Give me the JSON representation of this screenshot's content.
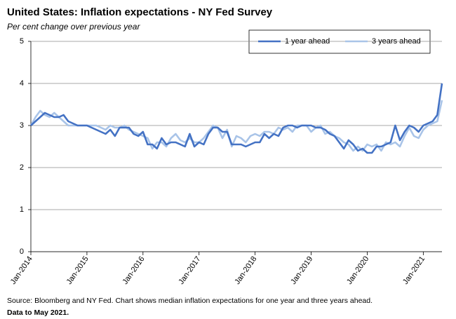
{
  "chart_data": {
    "type": "line",
    "title": "United States: Inflation expectations - NY Fed Survey",
    "subtitle": "Per cent change over previous year",
    "source": "Source: Bloomberg and NY Fed. Chart shows median inflation expectations for one year and three years ahead.",
    "note": "Data to  May 2021.",
    "categories": [
      "Jan-2014",
      null,
      null,
      null,
      null,
      null,
      null,
      null,
      null,
      null,
      null,
      null,
      "Jan-2015",
      null,
      null,
      null,
      null,
      null,
      null,
      null,
      null,
      null,
      null,
      null,
      "Jan-2016",
      null,
      null,
      null,
      null,
      null,
      null,
      null,
      null,
      null,
      null,
      null,
      "Jan-2017",
      null,
      null,
      null,
      null,
      null,
      null,
      null,
      null,
      null,
      null,
      null,
      "Jan-2018",
      null,
      null,
      null,
      null,
      null,
      null,
      null,
      null,
      null,
      null,
      null,
      "Jan-2019",
      null,
      null,
      null,
      null,
      null,
      null,
      null,
      null,
      null,
      null,
      null,
      "Jan-2020",
      null,
      null,
      null,
      null,
      null,
      null,
      null,
      null,
      null,
      null,
      null,
      "Jan-2021",
      null,
      null,
      null,
      null
    ],
    "series": [
      {
        "name": "1 year ahead",
        "color": "#4472c4",
        "values": [
          3.0,
          3.1,
          3.2,
          3.3,
          3.25,
          3.2,
          3.2,
          3.25,
          3.1,
          3.05,
          3.0,
          3.0,
          3.0,
          2.95,
          2.9,
          2.85,
          2.8,
          2.9,
          2.75,
          2.95,
          2.95,
          2.95,
          2.8,
          2.75,
          2.85,
          2.55,
          2.55,
          2.45,
          2.7,
          2.55,
          2.6,
          2.6,
          2.55,
          2.5,
          2.8,
          2.5,
          2.6,
          2.55,
          2.8,
          2.95,
          2.95,
          2.85,
          2.85,
          2.55,
          2.55,
          2.55,
          2.5,
          2.55,
          2.6,
          2.6,
          2.8,
          2.7,
          2.8,
          2.75,
          2.95,
          3.0,
          3.0,
          2.95,
          3.0,
          3.0,
          3.0,
          2.95,
          2.95,
          2.9,
          2.8,
          2.75,
          2.6,
          2.45,
          2.65,
          2.55,
          2.4,
          2.45,
          2.35,
          2.35,
          2.5,
          2.5,
          2.55,
          2.6,
          3.0,
          2.65,
          2.85,
          3.0,
          2.95,
          2.85,
          3.0,
          3.05,
          3.1,
          3.25,
          4.0
        ]
      },
      {
        "name": "3 years ahead",
        "color": "#a9c4e8",
        "values": [
          3.0,
          3.2,
          3.35,
          3.25,
          3.2,
          3.3,
          3.2,
          3.1,
          3.0,
          3.0,
          3.0,
          3.0,
          3.0,
          3.0,
          3.0,
          2.95,
          2.9,
          3.0,
          2.95,
          2.95,
          3.0,
          2.9,
          2.85,
          2.8,
          2.75,
          2.7,
          2.45,
          2.6,
          2.6,
          2.5,
          2.7,
          2.8,
          2.65,
          2.6,
          2.7,
          2.6,
          2.6,
          2.7,
          2.85,
          3.0,
          2.95,
          2.7,
          2.9,
          2.5,
          2.75,
          2.7,
          2.6,
          2.75,
          2.8,
          2.75,
          2.85,
          2.85,
          2.8,
          2.95,
          2.9,
          2.95,
          2.85,
          3.0,
          3.0,
          3.0,
          2.85,
          2.95,
          3.0,
          2.8,
          2.85,
          2.75,
          2.7,
          2.6,
          2.55,
          2.4,
          2.5,
          2.4,
          2.55,
          2.5,
          2.55,
          2.4,
          2.6,
          2.55,
          2.6,
          2.5,
          2.75,
          2.95,
          2.75,
          2.7,
          2.9,
          3.0,
          3.05,
          3.1,
          3.6
        ]
      }
    ],
    "ylim": [
      0,
      5
    ],
    "yticks": [
      0,
      1,
      2,
      3,
      4,
      5
    ],
    "grid": true,
    "legend": "top-right"
  }
}
